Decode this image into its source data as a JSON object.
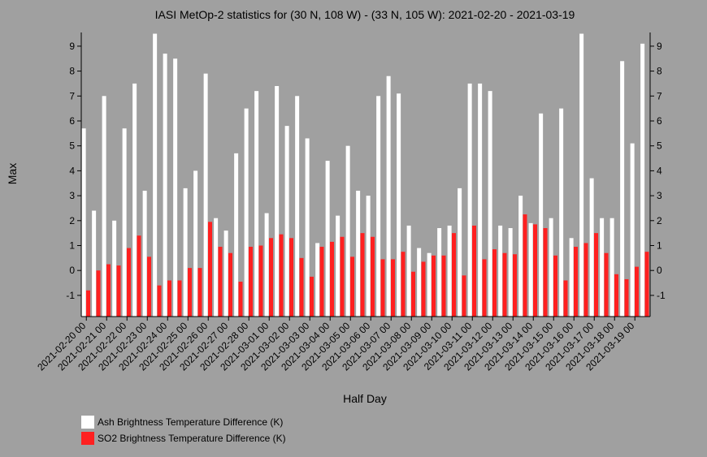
{
  "chart_data": {
    "type": "bar",
    "title": "IASI MetOp-2 statistics for (30 N, 108 W) - (33 N, 105 W): 2021-02-20 - 2021-03-19",
    "xlabel": "Half Day",
    "ylabel": "Max",
    "ylim": [
      -1.85,
      9.55
    ],
    "yticks": [
      -1,
      0,
      1,
      2,
      3,
      4,
      5,
      6,
      7,
      8,
      9
    ],
    "grid": false,
    "legend_position": "bottom-left",
    "x_tick_labels": [
      "2021-02-20 00",
      "2021-02-21 00",
      "2021-02-22 00",
      "2021-02-23 00",
      "2021-02-24 00",
      "2021-02-25 00",
      "2021-02-26 00",
      "2021-02-27 00",
      "2021-02-28 00",
      "2021-03-01 00",
      "2021-03-02 00",
      "2021-03-03 00",
      "2021-03-04 00",
      "2021-03-05 00",
      "2021-03-06 00",
      "2021-03-07 00",
      "2021-03-08 00",
      "2021-03-09 00",
      "2021-03-10 00",
      "2021-03-11 00",
      "2021-03-12 00",
      "2021-03-13 00",
      "2021-03-14 00",
      "2021-03-15 00",
      "2021-03-16 00",
      "2021-03-17 00",
      "2021-03-18 00",
      "2021-03-19 00"
    ],
    "series": [
      {
        "name": "Ash Brightness Temperature Difference (K)",
        "color": "#ffffff",
        "values": [
          5.7,
          2.4,
          7.0,
          2.0,
          5.7,
          7.5,
          3.2,
          9.5,
          8.7,
          8.5,
          3.3,
          4.0,
          7.9,
          2.1,
          1.6,
          4.7,
          6.5,
          7.2,
          2.3,
          7.4,
          5.8,
          7.0,
          5.3,
          1.1,
          4.4,
          2.2,
          5.0,
          3.2,
          3.0,
          7.0,
          7.8,
          7.1,
          1.8,
          0.9,
          0.7,
          1.7,
          1.8,
          3.3,
          7.5,
          7.5,
          7.2,
          1.8,
          1.7,
          3.0,
          1.9,
          6.3,
          2.1,
          6.5,
          1.3,
          9.5,
          3.7,
          2.1,
          2.1,
          8.4,
          5.1,
          9.1
        ]
      },
      {
        "name": "SO2 Brightness Temperature Difference (K)",
        "color": "#ff2020",
        "values": [
          -0.8,
          0.0,
          0.25,
          0.2,
          0.9,
          1.4,
          0.55,
          -0.6,
          -0.4,
          -0.4,
          0.1,
          0.1,
          1.95,
          0.95,
          0.7,
          -0.45,
          0.95,
          1.0,
          1.3,
          1.45,
          1.3,
          0.5,
          -0.25,
          0.95,
          1.15,
          1.35,
          0.55,
          1.5,
          1.35,
          0.45,
          0.45,
          0.75,
          -0.05,
          0.35,
          0.6,
          0.6,
          1.5,
          -0.2,
          1.8,
          0.45,
          0.85,
          0.7,
          0.65,
          2.25,
          1.85,
          1.7,
          0.6,
          -0.4,
          0.95,
          1.1,
          1.5,
          0.7,
          -0.15,
          -0.35,
          0.15,
          0.75
        ]
      }
    ]
  }
}
